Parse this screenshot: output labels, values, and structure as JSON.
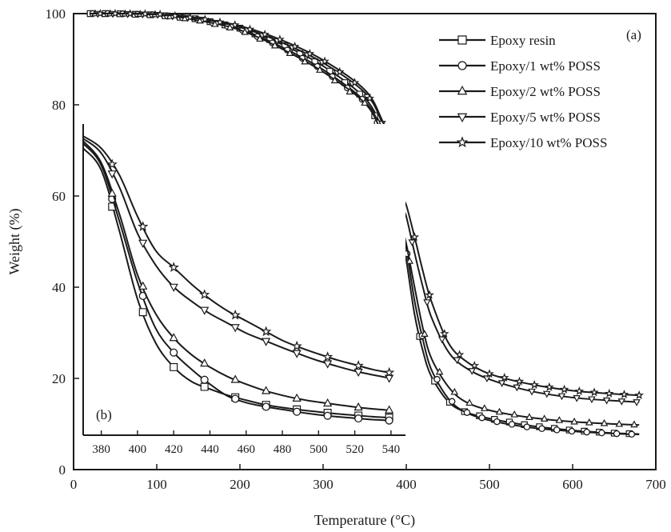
{
  "chart_data": [
    {
      "panel_label": "(a)",
      "type": "line",
      "xlabel": "Temperature (°C)",
      "ylabel": "Weight (%)",
      "xlim": [
        0,
        700
      ],
      "ylim": [
        0,
        100
      ],
      "xticks": [
        0,
        100,
        200,
        300,
        400,
        500,
        600,
        700
      ],
      "yticks": [
        0,
        20,
        40,
        60,
        80,
        100
      ],
      "legend_position": "top-right",
      "grid": false,
      "series": [
        {
          "name": "Epoxy resin",
          "marker": "square",
          "x": [
            20,
            50,
            100,
            150,
            200,
            250,
            300,
            350,
            370,
            380,
            385,
            390,
            395,
            400,
            410,
            420,
            430,
            450,
            470,
            500,
            550,
            600,
            650,
            680
          ],
          "y": [
            100,
            100,
            99.7,
            98.8,
            96.8,
            93.3,
            88.5,
            81.5,
            75,
            68,
            62,
            56,
            51,
            46,
            34,
            26,
            20.5,
            15,
            12.7,
            11.2,
            9.6,
            8.6,
            8.0,
            7.8
          ]
        },
        {
          "name": "Epoxy/1 wt% POSS",
          "marker": "circle",
          "x": [
            20,
            50,
            100,
            150,
            200,
            250,
            300,
            350,
            370,
            380,
            385,
            390,
            395,
            400,
            410,
            420,
            430,
            450,
            470,
            500,
            550,
            600,
            650,
            680
          ],
          "y": [
            100,
            100,
            99.7,
            98.7,
            96.6,
            92.7,
            87.7,
            80.8,
            74.5,
            68.5,
            63,
            57.5,
            52.5,
            48.5,
            37,
            28.5,
            22,
            15.7,
            12.7,
            10.8,
            9.2,
            8.4,
            7.9,
            7.7
          ]
        },
        {
          "name": "Epoxy/2 wt% POSS",
          "marker": "triangle-up",
          "x": [
            20,
            50,
            100,
            150,
            200,
            250,
            300,
            350,
            370,
            380,
            385,
            390,
            395,
            400,
            410,
            420,
            430,
            450,
            470,
            500,
            550,
            600,
            650,
            680
          ],
          "y": [
            100,
            100,
            99.8,
            98.5,
            96.4,
            92.3,
            87.2,
            80.4,
            74,
            68,
            62.5,
            57,
            53,
            49.5,
            40,
            31,
            24.5,
            18.3,
            15.0,
            13.0,
            11.4,
            10.5,
            10.0,
            9.8
          ]
        },
        {
          "name": "Epoxy/5 wt% POSS",
          "marker": "triangle-down",
          "x": [
            20,
            50,
            100,
            150,
            200,
            250,
            300,
            350,
            370,
            380,
            385,
            390,
            395,
            400,
            410,
            420,
            430,
            450,
            470,
            500,
            550,
            600,
            650,
            680
          ],
          "y": [
            100,
            100,
            99.8,
            98.9,
            97.0,
            93.7,
            89.2,
            82.7,
            76.5,
            70.5,
            66,
            61.5,
            57.5,
            55.5,
            47.5,
            40,
            33.5,
            26,
            22.5,
            19.8,
            17.2,
            15.8,
            15.1,
            14.8
          ]
        },
        {
          "name": "Epoxy/10 wt% POSS",
          "marker": "star",
          "x": [
            20,
            50,
            100,
            150,
            200,
            250,
            300,
            350,
            370,
            380,
            385,
            390,
            395,
            400,
            410,
            420,
            430,
            450,
            470,
            500,
            550,
            600,
            650,
            680
          ],
          "y": [
            100,
            100,
            99.9,
            99.0,
            97.3,
            94.2,
            89.8,
            83.3,
            77,
            71.5,
            67.5,
            63,
            59.5,
            58,
            51,
            43.5,
            37,
            28,
            24,
            21,
            18.7,
            17.3,
            16.6,
            16.3
          ]
        }
      ]
    },
    {
      "panel_label": "(b)",
      "type": "line",
      "xlim": [
        370,
        548
      ],
      "ylim": [
        12,
        76
      ],
      "xticks": [
        380,
        400,
        420,
        440,
        460,
        480,
        500,
        520,
        540
      ],
      "yticks": [],
      "grid": false,
      "series": [
        {
          "name": "Epoxy resin",
          "marker": "square",
          "x": [
            370,
            380,
            390,
            400,
            410,
            420,
            430,
            440,
            450,
            460,
            470,
            480,
            490,
            500,
            510,
            520,
            530,
            540
          ],
          "y": [
            71,
            66.5,
            54,
            40,
            31,
            26,
            23,
            21.5,
            20.2,
            19.2,
            18.3,
            17.7,
            17.2,
            16.8,
            16.4,
            16.1,
            15.8,
            15.6
          ]
        },
        {
          "name": "Epoxy/1 wt% POSS",
          "marker": "circle",
          "x": [
            370,
            380,
            390,
            400,
            410,
            420,
            430,
            440,
            450,
            460,
            470,
            480,
            490,
            500,
            510,
            520,
            530,
            540
          ],
          "y": [
            72,
            67.5,
            56,
            43.5,
            34,
            29,
            25.5,
            22.5,
            20,
            18.7,
            17.9,
            17.3,
            16.7,
            16.2,
            15.8,
            15.5,
            15.2,
            15.0
          ]
        },
        {
          "name": "Epoxy/2 wt% POSS",
          "marker": "triangle-up",
          "x": [
            370,
            380,
            390,
            400,
            410,
            420,
            430,
            440,
            450,
            460,
            470,
            480,
            490,
            500,
            510,
            520,
            530,
            540
          ],
          "y": [
            72.5,
            68,
            57.5,
            45,
            37,
            32,
            28.5,
            26,
            24,
            22.5,
            21.2,
            20.2,
            19.4,
            18.8,
            18.3,
            17.8,
            17.4,
            17.1
          ]
        },
        {
          "name": "Epoxy/5 wt% POSS",
          "marker": "triangle-down",
          "x": [
            370,
            380,
            390,
            400,
            410,
            420,
            430,
            440,
            450,
            460,
            470,
            480,
            490,
            500,
            510,
            520,
            530,
            540
          ],
          "y": [
            73,
            70,
            63,
            53.5,
            47,
            42.5,
            39.5,
            37,
            35,
            33,
            31.5,
            30,
            28.6,
            27.3,
            26.2,
            25.2,
            24.4,
            23.7
          ]
        },
        {
          "name": "Epoxy/10 wt% POSS",
          "marker": "star",
          "x": [
            370,
            380,
            390,
            400,
            410,
            420,
            430,
            440,
            450,
            460,
            470,
            480,
            490,
            500,
            510,
            520,
            530,
            540
          ],
          "y": [
            73.5,
            71,
            65.5,
            57,
            50,
            46.5,
            43,
            40,
            37.5,
            35.5,
            33.5,
            31.5,
            30,
            28.7,
            27.5,
            26.5,
            25.5,
            24.8
          ]
        }
      ]
    }
  ]
}
